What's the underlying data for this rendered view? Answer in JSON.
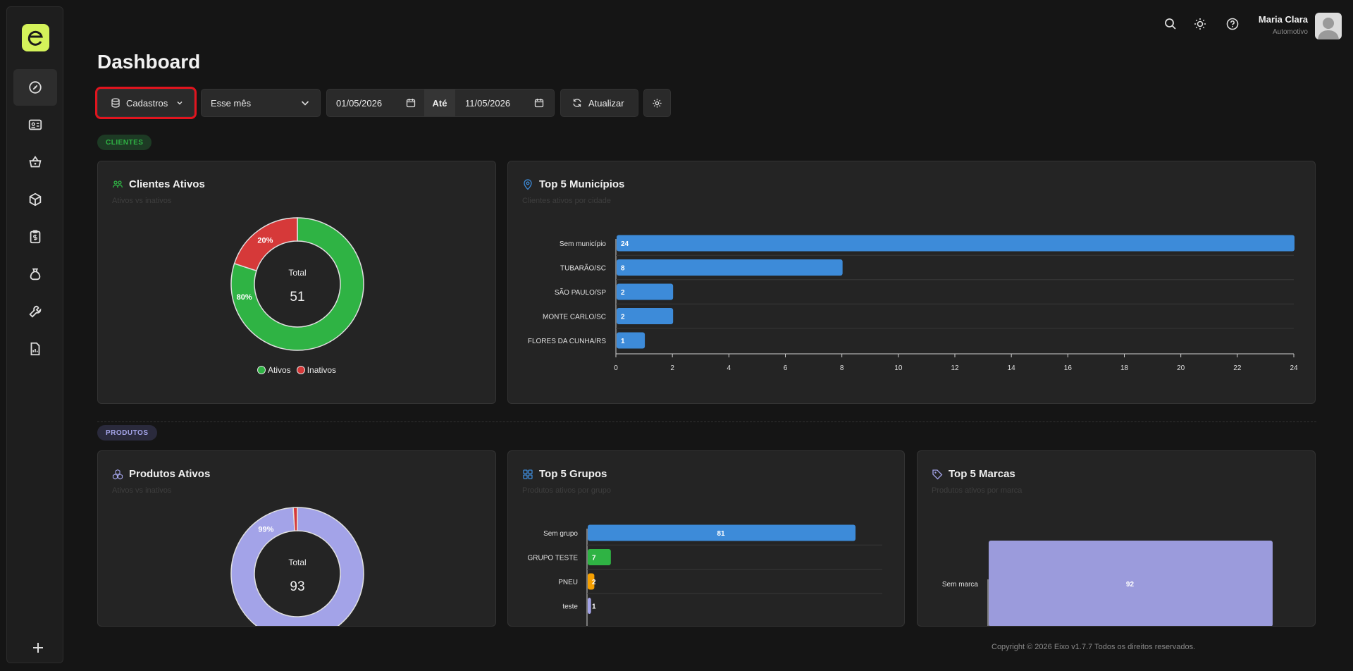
{
  "header": {
    "user_name": "Maria Clara",
    "user_role": "Automotivo",
    "icons": [
      "search-icon",
      "sun-icon",
      "help-icon"
    ]
  },
  "page_title": "Dashboard",
  "filters": {
    "module": "Cadastros",
    "period": "Esse mês",
    "date_from": "01/05/2026",
    "until_label": "Até",
    "date_to": "11/05/2026",
    "refresh_label": "Atualizar"
  },
  "sidebar": {
    "icons": [
      "dashboard-icon",
      "contact-card-icon",
      "basket-icon",
      "box-icon",
      "clipboard-dollar-icon",
      "money-bag-icon",
      "wrench-icon",
      "report-icon",
      "plus-icon"
    ]
  },
  "sections": {
    "clientes": "CLIENTES",
    "produtos": "PRODUTOS"
  },
  "cards": {
    "clientes_ativos": {
      "title": "Clientes Ativos",
      "subtitle": "Ativos vs inativos",
      "total_label": "Total",
      "total": "51",
      "legend": [
        "Ativos",
        "Inativos"
      ]
    },
    "top_municipios": {
      "title": "Top 5 Municípios",
      "subtitle": "Clientes ativos por cidade"
    },
    "produtos_ativos": {
      "title": "Produtos Ativos",
      "subtitle": "Ativos vs inativos",
      "total_label": "Total",
      "total": "93"
    },
    "top_grupos": {
      "title": "Top 5 Grupos",
      "subtitle": "Produtos ativos por grupo"
    },
    "top_marcas": {
      "title": "Top 5 Marcas",
      "subtitle": "Produtos ativos por marca"
    }
  },
  "chart_data": [
    {
      "type": "pie",
      "categories": [
        "Ativos",
        "Inativos"
      ],
      "values": [
        80,
        20
      ],
      "labels": [
        "80%",
        "20%"
      ],
      "colors": [
        "#2fb344",
        "#d63939"
      ]
    },
    {
      "type": "bar",
      "orientation": "horizontal",
      "categories": [
        "Sem município",
        "TUBARÃO/SC",
        "SÃO PAULO/SP",
        "MONTE CARLO/SC",
        "FLORES DA CUNHA/RS"
      ],
      "values": [
        24,
        8,
        2,
        2,
        1
      ],
      "xlim": [
        0,
        24
      ],
      "xticks": [
        "0",
        "2",
        "4",
        "6",
        "8",
        "10",
        "12",
        "14",
        "16",
        "18",
        "20",
        "22",
        "24"
      ],
      "color": "#3d8bd9"
    },
    {
      "type": "pie",
      "categories": [
        "Ativos",
        "Inativos"
      ],
      "values": [
        99,
        1
      ],
      "labels": [
        "99%"
      ],
      "colors": [
        "#a3a3e8",
        "#d63939"
      ]
    },
    {
      "type": "bar",
      "orientation": "horizontal",
      "categories": [
        "Sem grupo",
        "GRUPO TESTE",
        "PNEU",
        "teste"
      ],
      "values": [
        81,
        7,
        2,
        1
      ],
      "xlim": [
        0,
        100
      ],
      "colors": [
        "#3d8bd9",
        "#2fb344",
        "#f59f00",
        "#a3a3e8"
      ]
    },
    {
      "type": "bar",
      "orientation": "horizontal",
      "categories": [
        "Sem marca"
      ],
      "values": [
        92
      ],
      "xlim": [
        0,
        100
      ],
      "color": "#9b9bdc"
    }
  ],
  "footer": "Copyright © 2026 Eixo v1.7.7 Todos os direitos reservados."
}
